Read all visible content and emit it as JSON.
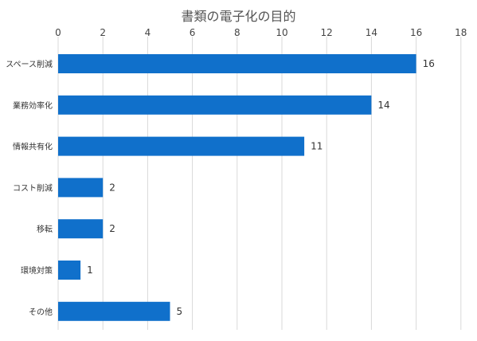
{
  "chart_data": {
    "type": "bar",
    "orientation": "horizontal",
    "title": "書類の電子化の目的",
    "xlabel": "",
    "ylabel": "",
    "categories": [
      "スペース削減",
      "業務効率化",
      "情報共有化",
      "コスト削減",
      "移転",
      "環境対策",
      "その他"
    ],
    "values": [
      16,
      14,
      11,
      2,
      2,
      1,
      5
    ],
    "xlim": [
      0,
      18
    ],
    "x_ticks": [
      0,
      2,
      4,
      6,
      8,
      10,
      12,
      14,
      16,
      18
    ],
    "x_axis_position": "top",
    "grid": true,
    "data_labels": true,
    "legend": "none",
    "bar_color": "#1070cb",
    "grid_color": "#d9d9d9"
  }
}
